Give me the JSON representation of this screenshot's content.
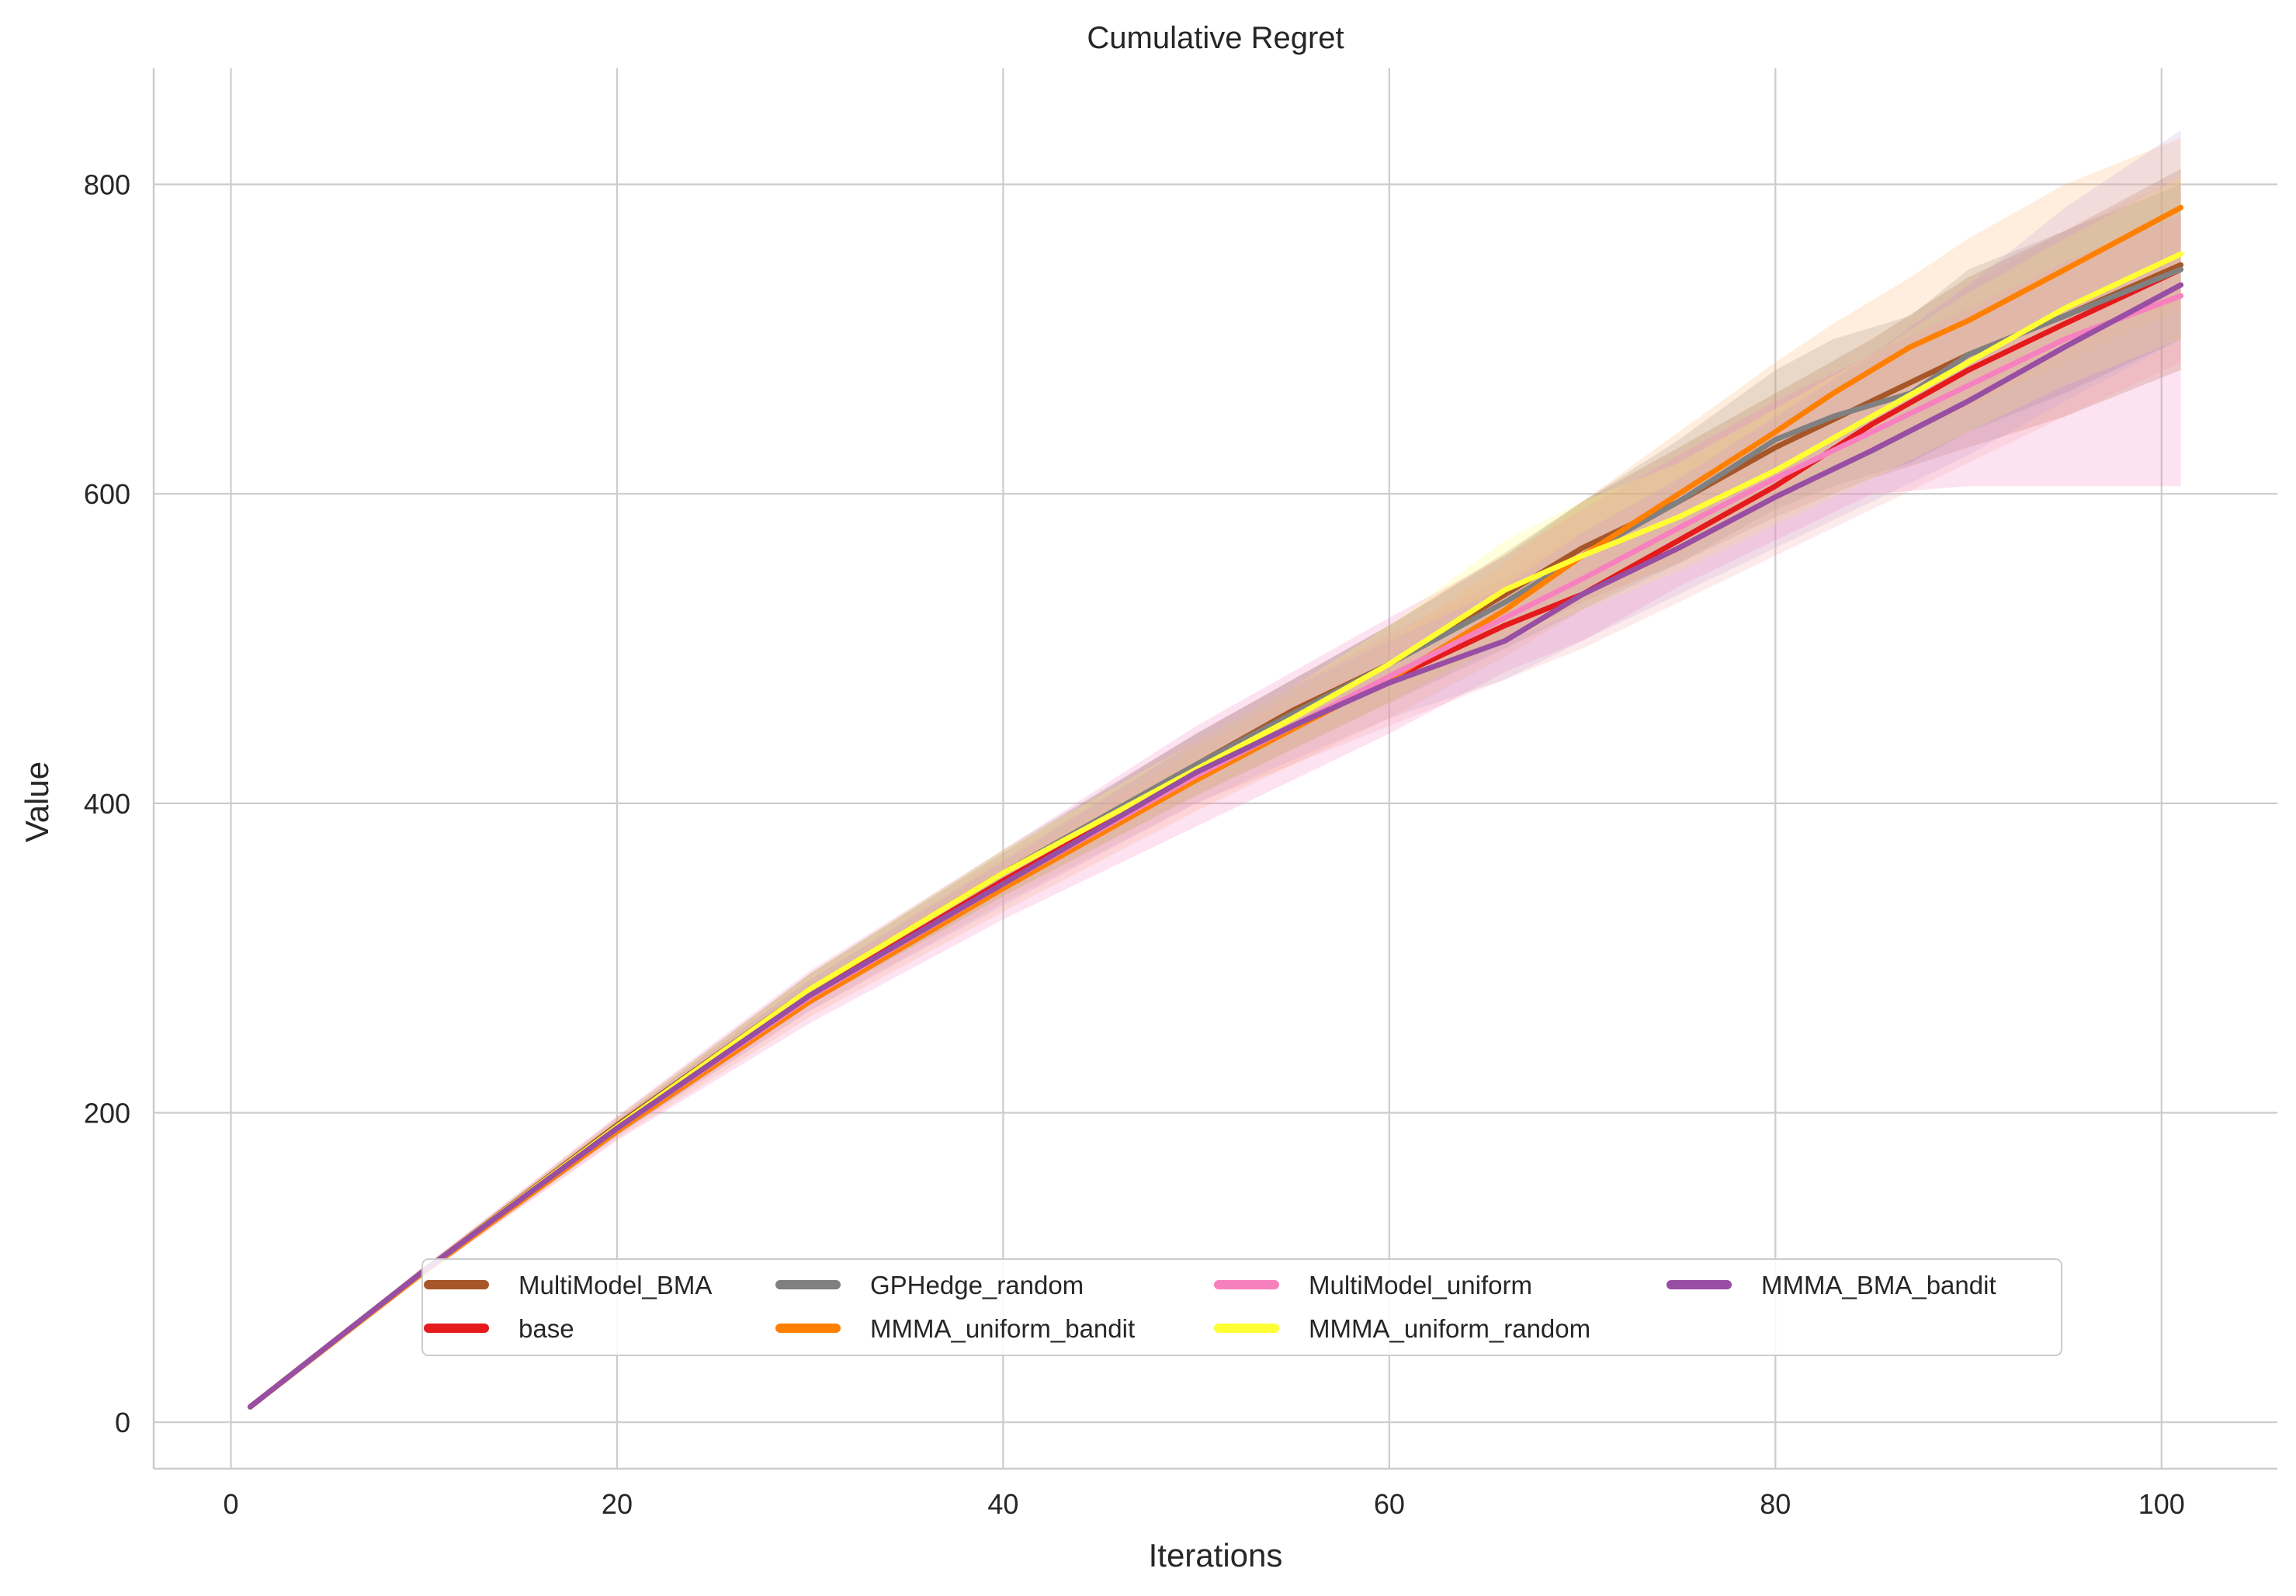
{
  "chart_data": {
    "type": "line",
    "title": "Cumulative Regret",
    "xlabel": "Iterations",
    "ylabel": "Value",
    "xlim": [
      -4,
      106
    ],
    "ylim": [
      -30,
      875
    ],
    "xticks": [
      0,
      20,
      40,
      60,
      80,
      100
    ],
    "yticks": [
      0,
      200,
      400,
      600,
      800
    ],
    "grid": true,
    "legend_position": "lower-center",
    "series": [
      {
        "name": "MultiModel_BMA",
        "color": "#a65628",
        "band_color": "#a65628",
        "x": [
          1,
          10,
          20,
          30,
          40,
          50,
          55,
          60,
          66,
          70,
          75,
          80,
          85,
          90,
          95,
          101
        ],
        "y": [
          10,
          98,
          192,
          280,
          355,
          425,
          460,
          490,
          535,
          565,
          595,
          630,
          660,
          690,
          715,
          748
        ],
        "lower": [
          10,
          96,
          187,
          270,
          340,
          405,
          435,
          465,
          505,
          530,
          555,
          585,
          610,
          630,
          650,
          680
        ],
        "upper": [
          10,
          100,
          197,
          290,
          368,
          445,
          480,
          515,
          562,
          595,
          630,
          665,
          700,
          740,
          770,
          810
        ]
      },
      {
        "name": "base",
        "color": "#e41a1c",
        "band_color": "#f5a3a3",
        "x": [
          1,
          10,
          20,
          30,
          40,
          50,
          55,
          60,
          66,
          70,
          75,
          80,
          85,
          90,
          95,
          101
        ],
        "y": [
          10,
          98,
          191,
          276,
          350,
          420,
          450,
          480,
          515,
          535,
          570,
          605,
          645,
          680,
          710,
          745
        ],
        "lower": [
          10,
          96,
          186,
          266,
          336,
          400,
          425,
          450,
          480,
          500,
          530,
          560,
          590,
          620,
          650,
          685
        ],
        "upper": [
          10,
          100,
          196,
          286,
          364,
          440,
          475,
          510,
          545,
          575,
          610,
          650,
          690,
          735,
          770,
          805
        ]
      },
      {
        "name": "GPHedge_random",
        "color": "#808080",
        "band_color": "#808080",
        "x": [
          1,
          10,
          20,
          30,
          40,
          50,
          55,
          60,
          66,
          70,
          75,
          80,
          83,
          87,
          90,
          95,
          101
        ],
        "y": [
          10,
          98,
          190,
          280,
          355,
          425,
          458,
          490,
          530,
          560,
          595,
          635,
          650,
          665,
          690,
          715,
          745
        ],
        "lower": [
          10,
          96,
          185,
          270,
          340,
          405,
          435,
          465,
          500,
          525,
          555,
          590,
          605,
          620,
          640,
          665,
          700
        ],
        "upper": [
          10,
          100,
          195,
          290,
          370,
          445,
          480,
          515,
          560,
          595,
          635,
          680,
          700,
          715,
          745,
          770,
          800
        ]
      },
      {
        "name": "MMMA_uniform_bandit",
        "color": "#ff7f00",
        "band_color": "#ffb366",
        "x": [
          1,
          10,
          20,
          30,
          40,
          50,
          55,
          60,
          66,
          70,
          75,
          80,
          83,
          87,
          90,
          95,
          101
        ],
        "y": [
          10,
          97,
          188,
          272,
          345,
          415,
          448,
          480,
          525,
          560,
          600,
          640,
          665,
          695,
          712,
          745,
          785
        ],
        "lower": [
          10,
          95,
          183,
          262,
          330,
          395,
          425,
          455,
          495,
          525,
          560,
          595,
          615,
          640,
          655,
          685,
          720
        ],
        "upper": [
          10,
          99,
          193,
          282,
          360,
          435,
          470,
          505,
          555,
          595,
          640,
          685,
          710,
          740,
          765,
          800,
          830
        ]
      },
      {
        "name": "MultiModel_uniform",
        "color": "#f781bf",
        "band_color": "#f781bf",
        "x": [
          1,
          10,
          20,
          30,
          40,
          50,
          55,
          60,
          66,
          70,
          75,
          80,
          85,
          90,
          95,
          101
        ],
        "y": [
          10,
          98,
          190,
          275,
          348,
          418,
          450,
          482,
          520,
          545,
          578,
          610,
          640,
          670,
          700,
          728
        ],
        "lower": [
          10,
          95,
          182,
          258,
          325,
          385,
          415,
          445,
          485,
          505,
          540,
          570,
          600,
          605,
          605,
          605
        ],
        "upper": [
          10,
          101,
          198,
          292,
          370,
          450,
          485,
          520,
          560,
          590,
          625,
          660,
          690,
          720,
          750,
          780
        ]
      },
      {
        "name": "MMMA_uniform_random",
        "color": "#ffff33",
        "band_color": "#ffff66",
        "x": [
          1,
          10,
          20,
          30,
          40,
          50,
          55,
          60,
          66,
          70,
          75,
          80,
          85,
          90,
          95,
          101
        ],
        "y": [
          10,
          98,
          191,
          280,
          355,
          422,
          455,
          490,
          538,
          560,
          585,
          615,
          650,
          685,
          720,
          755
        ],
        "lower": [
          10,
          96,
          186,
          270,
          340,
          405,
          435,
          465,
          505,
          525,
          550,
          580,
          610,
          640,
          670,
          700
        ],
        "upper": [
          10,
          100,
          196,
          290,
          370,
          440,
          475,
          515,
          570,
          595,
          620,
          655,
          690,
          730,
          765,
          805
        ]
      },
      {
        "name": "MMMA_BMA_bandit",
        "color": "#984ea3",
        "band_color": "#c2a0d6",
        "x": [
          1,
          10,
          20,
          30,
          40,
          50,
          55,
          60,
          66,
          70,
          75,
          80,
          85,
          90,
          95,
          101
        ],
        "y": [
          10,
          98,
          190,
          276,
          348,
          420,
          450,
          478,
          505,
          535,
          565,
          598,
          628,
          660,
          695,
          735
        ],
        "lower": [
          10,
          96,
          185,
          266,
          334,
          400,
          428,
          455,
          480,
          505,
          535,
          565,
          595,
          625,
          660,
          700
        ],
        "upper": [
          10,
          100,
          195,
          286,
          362,
          440,
          475,
          505,
          540,
          575,
          610,
          650,
          690,
          735,
          785,
          835
        ]
      }
    ]
  }
}
